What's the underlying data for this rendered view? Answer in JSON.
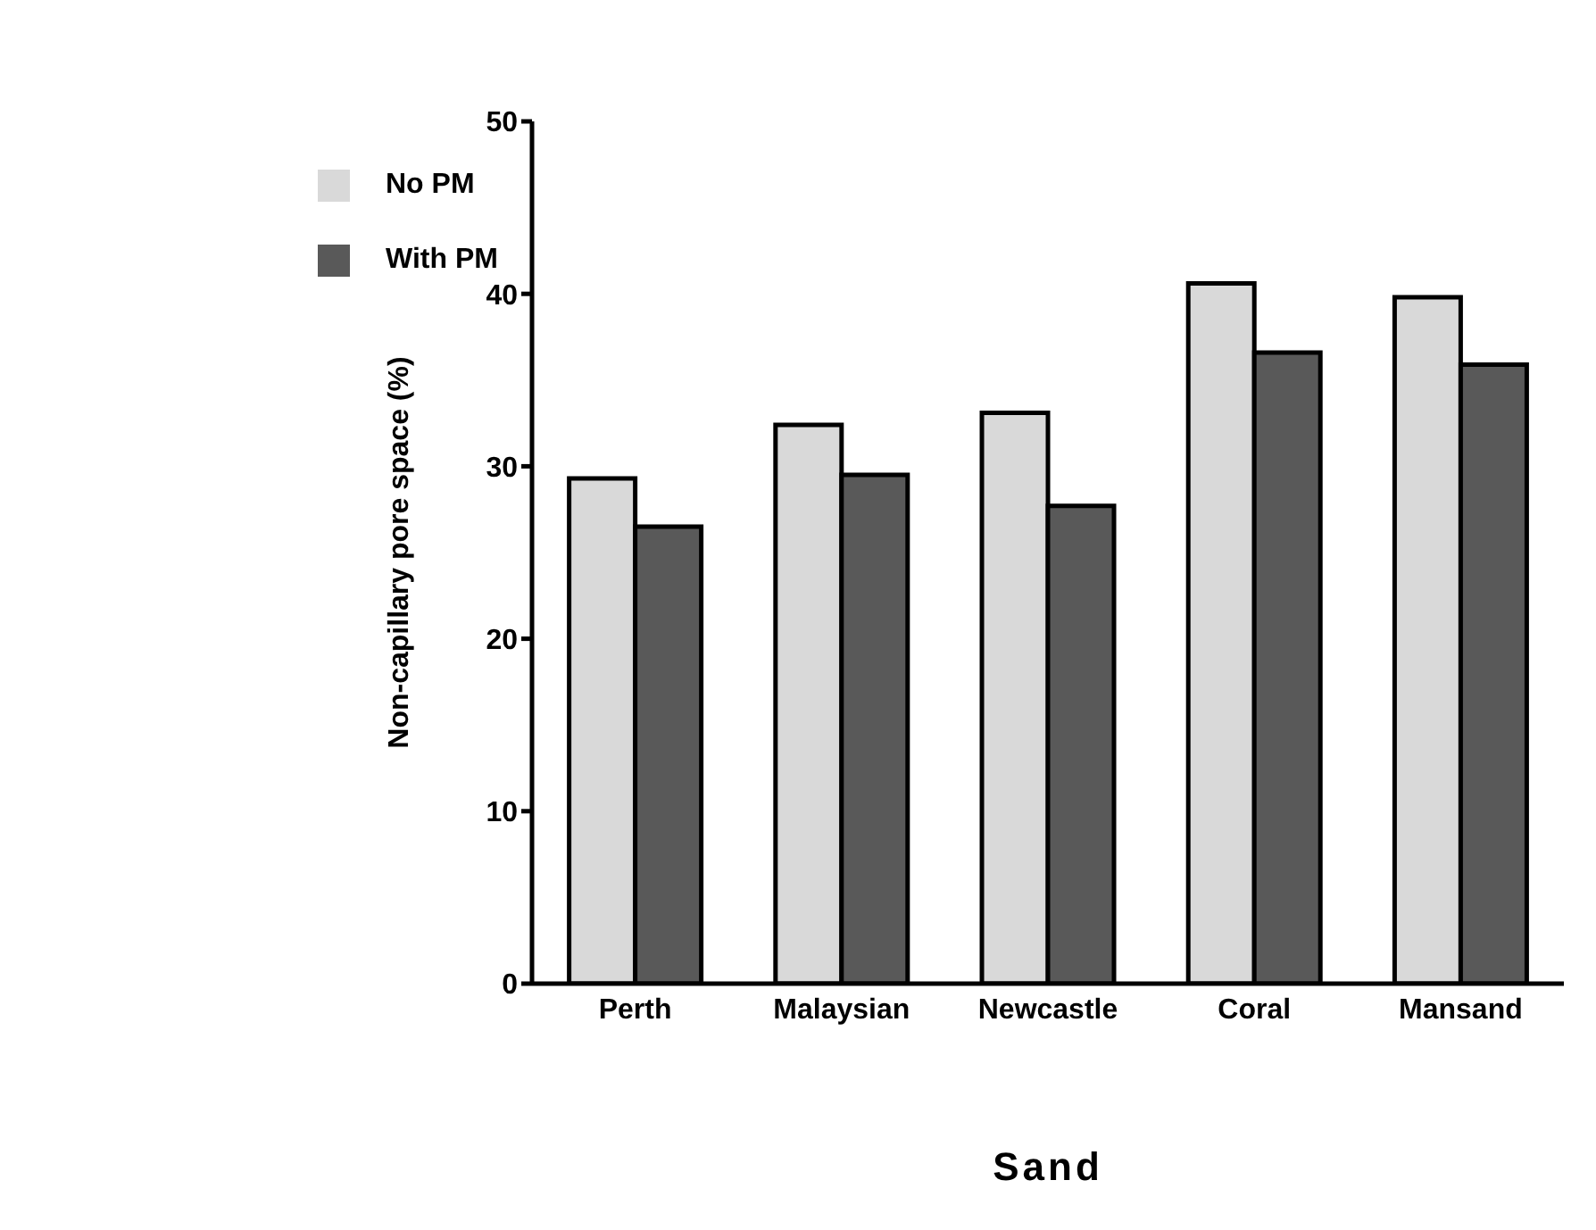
{
  "chart_data": {
    "type": "bar",
    "xlabel": "Sand",
    "ylabel": "Non-capillary pore space (%)",
    "categories": [
      "Perth",
      "Malaysian",
      "Newcastle",
      "Coral",
      "Mansand"
    ],
    "series": [
      {
        "name": "No PM",
        "color": "#d9d9d9",
        "values": [
          29.3,
          32.4,
          33.1,
          40.6,
          39.8
        ]
      },
      {
        "name": "With PM",
        "color": "#595959",
        "values": [
          26.5,
          29.5,
          27.7,
          36.6,
          35.9
        ]
      }
    ],
    "ylim": [
      0,
      50
    ],
    "yticks": [
      0,
      10,
      20,
      30,
      40,
      50
    ],
    "grid": false,
    "legend": "top left"
  }
}
